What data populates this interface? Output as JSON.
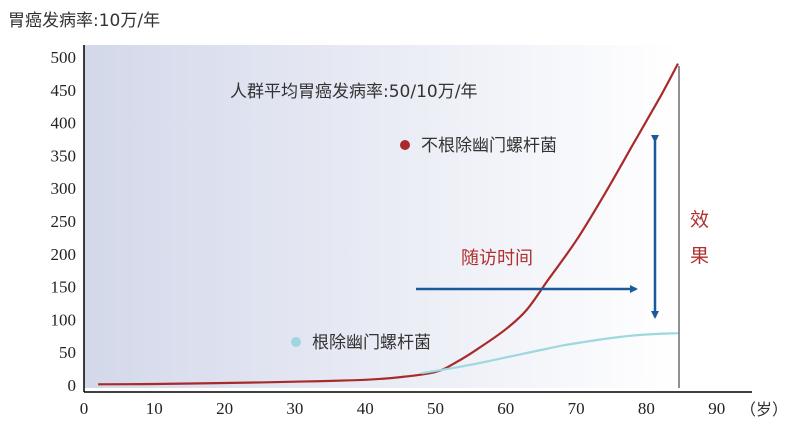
{
  "chart_data": {
    "type": "line",
    "ylabel": "胃癌发病率:10万/年",
    "xlabel": "（岁）",
    "xlim": [
      0,
      95
    ],
    "ylim": [
      0,
      500
    ],
    "x_ticks": [
      0,
      10,
      20,
      30,
      40,
      50,
      60,
      70,
      80,
      90
    ],
    "y_ticks": [
      0,
      50,
      100,
      150,
      200,
      250,
      300,
      350,
      400,
      450,
      500
    ],
    "annotations": {
      "average": "人群平均胃癌发病率:50/10万/年",
      "followup": "随访时间",
      "effect_top": "效",
      "effect_bottom": "果"
    },
    "series": [
      {
        "name": "不根除幽门螺杆菌",
        "color": "#a82a2a",
        "x": [
          2,
          10,
          20,
          30,
          40,
          45,
          50,
          53,
          56,
          60,
          63,
          66,
          70,
          74,
          78,
          82,
          84.5
        ],
        "y": [
          1,
          1.5,
          3,
          5,
          8,
          12,
          20,
          35,
          55,
          85,
          115,
          160,
          220,
          290,
          365,
          440,
          490
        ]
      },
      {
        "name": "根除幽门螺杆菌",
        "color": "#9dd8e0",
        "x": [
          48,
          52,
          56,
          60,
          64,
          68,
          72,
          76,
          80,
          84.5
        ],
        "y": [
          18,
          25,
          33,
          42,
          51,
          60,
          67,
          73,
          77,
          79
        ]
      }
    ],
    "arrow_color": "#1a5a9a"
  }
}
